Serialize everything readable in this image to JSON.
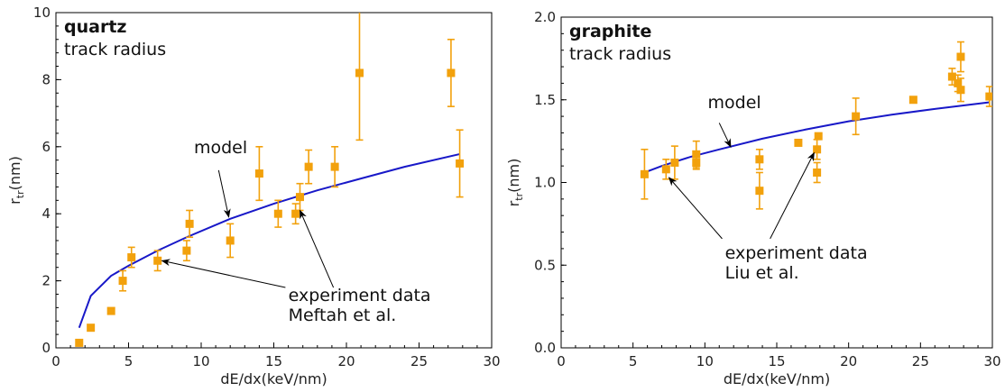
{
  "colors": {
    "model": "#1818c8",
    "data": "#f2a10c",
    "axis": "#000000"
  },
  "chart_data": [
    {
      "type": "scatter",
      "title": "quartz",
      "subtitle": "track radius",
      "xlabel": "dE/dx(keV/nm)",
      "ylabel_main": "r",
      "ylabel_sub": "tr",
      "ylabel_tail": "(nm)",
      "xlim": [
        0,
        30
      ],
      "ylim": [
        0,
        10
      ],
      "xticks": [
        0,
        5,
        10,
        15,
        20,
        25,
        30
      ],
      "yticks": [
        0,
        2,
        4,
        6,
        8,
        10
      ],
      "ytick_labels": [
        "0",
        "2",
        "4",
        "6",
        "8",
        "10"
      ],
      "series": [
        {
          "kind": "line",
          "x": [
            1.6,
            2.4,
            3.8,
            5.0,
            7.0,
            9.0,
            12.0,
            15.0,
            18.0,
            21.0,
            24.0,
            27.8
          ],
          "y": [
            0.6,
            1.55,
            2.15,
            2.45,
            2.9,
            3.3,
            3.85,
            4.3,
            4.7,
            5.05,
            5.4,
            5.78
          ]
        },
        {
          "kind": "points",
          "points": [
            {
              "x": 1.6,
              "y": 0.15,
              "err": 0
            },
            {
              "x": 2.4,
              "y": 0.6,
              "err": 0
            },
            {
              "x": 3.8,
              "y": 1.1,
              "err": 0
            },
            {
              "x": 4.6,
              "y": 2.0,
              "err": 0.3
            },
            {
              "x": 5.2,
              "y": 2.7,
              "err": 0.3
            },
            {
              "x": 7.0,
              "y": 2.6,
              "err": 0.3
            },
            {
              "x": 9.0,
              "y": 2.9,
              "err": 0.3
            },
            {
              "x": 9.2,
              "y": 3.7,
              "err": 0.4
            },
            {
              "x": 12.0,
              "y": 3.2,
              "err": 0.5
            },
            {
              "x": 14.0,
              "y": 5.2,
              "err": 0.8
            },
            {
              "x": 15.3,
              "y": 4.0,
              "err": 0.4
            },
            {
              "x": 16.5,
              "y": 4.0,
              "err": 0.3
            },
            {
              "x": 16.8,
              "y": 4.5,
              "err": 0.4
            },
            {
              "x": 17.4,
              "y": 5.4,
              "err": 0.5
            },
            {
              "x": 19.2,
              "y": 5.4,
              "err": 0.6
            },
            {
              "x": 20.9,
              "y": 8.2,
              "err": 2.0
            },
            {
              "x": 27.2,
              "y": 8.2,
              "err": 1.0
            },
            {
              "x": 27.8,
              "y": 5.5,
              "err": 1.0
            }
          ]
        }
      ],
      "annotations": [
        {
          "text": [
            "model"
          ],
          "tx": 9.5,
          "ty": 5.8,
          "ax": 11.9,
          "ay": 3.9,
          "sx": 11.2,
          "sy": 5.3
        },
        {
          "text": [
            "experiment data",
            "Meftah et al."
          ],
          "tx": 16.0,
          "ty": 1.4,
          "ax": 7.3,
          "ay": 2.6,
          "sx": 15.8,
          "sy": 1.8,
          "ax2": 16.8,
          "ay2": 4.1
        }
      ]
    },
    {
      "type": "scatter",
      "title": "graphite",
      "subtitle": "track radius",
      "xlabel": "dE/dx(keV/nm)",
      "ylabel_main": "r",
      "ylabel_sub": "tr",
      "ylabel_tail": "(nm)",
      "xlim": [
        0,
        30
      ],
      "ylim": [
        0,
        2
      ],
      "xticks": [
        0,
        5,
        10,
        15,
        20,
        25,
        30
      ],
      "yticks": [
        0,
        0.5,
        1.0,
        1.5,
        2.0
      ],
      "ytick_labels": [
        "0.0",
        "0.5",
        "1.0",
        "1.5",
        "2.0"
      ],
      "series": [
        {
          "kind": "line",
          "x": [
            5.8,
            7.0,
            9.0,
            11.0,
            14.0,
            17.0,
            20.0,
            23.0,
            26.0,
            29.8
          ],
          "y": [
            1.06,
            1.1,
            1.155,
            1.2,
            1.265,
            1.32,
            1.37,
            1.41,
            1.445,
            1.485
          ]
        },
        {
          "kind": "points",
          "points": [
            {
              "x": 5.8,
              "y": 1.05,
              "err": 0.15
            },
            {
              "x": 7.3,
              "y": 1.08,
              "err": 0.06
            },
            {
              "x": 7.9,
              "y": 1.12,
              "err": 0.1
            },
            {
              "x": 9.4,
              "y": 1.12,
              "err": 0.04
            },
            {
              "x": 9.4,
              "y": 1.17,
              "err": 0.08
            },
            {
              "x": 13.8,
              "y": 0.95,
              "err": 0.11
            },
            {
              "x": 13.8,
              "y": 1.14,
              "err": 0.06
            },
            {
              "x": 16.5,
              "y": 1.24,
              "err": 0
            },
            {
              "x": 17.8,
              "y": 1.06,
              "err": 0.06
            },
            {
              "x": 17.8,
              "y": 1.2,
              "err": 0.06
            },
            {
              "x": 17.9,
              "y": 1.28,
              "err": 0
            },
            {
              "x": 20.5,
              "y": 1.4,
              "err": 0.11
            },
            {
              "x": 24.5,
              "y": 1.5,
              "err": 0
            },
            {
              "x": 27.2,
              "y": 1.64,
              "err": 0.05
            },
            {
              "x": 27.6,
              "y": 1.6,
              "err": 0.05
            },
            {
              "x": 27.8,
              "y": 1.76,
              "err": 0.09
            },
            {
              "x": 27.8,
              "y": 1.56,
              "err": 0.07
            },
            {
              "x": 29.8,
              "y": 1.52,
              "err": 0.06
            }
          ]
        }
      ],
      "annotations": [
        {
          "text": [
            "model"
          ],
          "tx": 10.2,
          "ty": 1.45,
          "ax": 11.8,
          "ay": 1.215,
          "sx": 11.0,
          "sy": 1.36
        },
        {
          "text": [
            "experiment data",
            "Liu et al."
          ],
          "tx": 11.4,
          "ty": 0.54,
          "ax": 7.5,
          "ay": 1.03,
          "sx": 11.2,
          "sy": 0.66,
          "ax2": 17.6,
          "ay2": 1.18
        }
      ]
    }
  ]
}
